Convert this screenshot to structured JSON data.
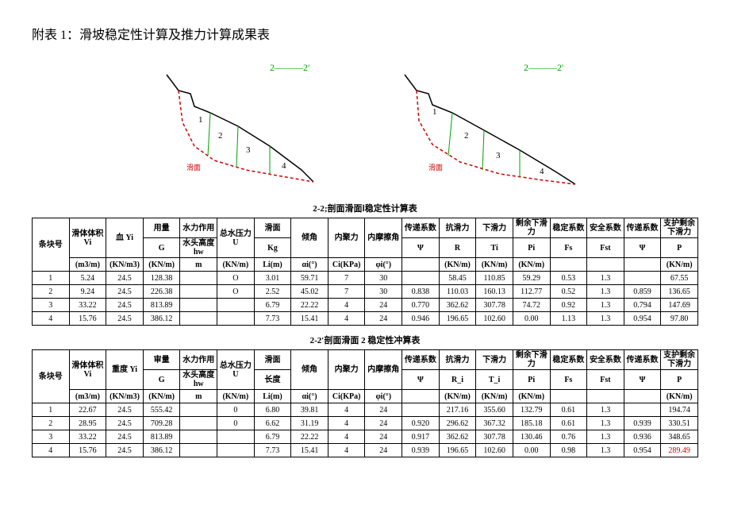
{
  "title": "附表 1：滑坡稳定性计算及推力计算成果表",
  "diagrams": {
    "label_left": "2———2′",
    "label_right": "2———2′",
    "slice_labels": [
      "1",
      "2",
      "3",
      "4"
    ],
    "slip_label": "滑面",
    "colors": {
      "label_green": "#00a000",
      "slip_red": "#d00000",
      "ground_black": "#000000",
      "slice_green": "#00a000"
    }
  },
  "table1": {
    "caption": "2-2;剖面滑面Ⅰ稳定性计算表",
    "header": {
      "c1": "条块号",
      "c2": "滑体体积 Vi",
      "c3": "血 Yi",
      "c4_top": "用量",
      "c4_bot": "G",
      "c5_top": "水力作用",
      "c5_mid": "水头高度",
      "c5_bot": "hw",
      "c6": "总水压力 U",
      "c7_top": "滑面",
      "c7_bot": "Kg",
      "c8": "倾角",
      "c9": "内聚力",
      "c10": "内摩擦角",
      "c11_top": "传递系数",
      "c11_bot": "Ψ",
      "c12_top": "抗滑力",
      "c12_bot": "R",
      "c13_top": "下滑力",
      "c13_bot": "Ti",
      "c14_top": "剩余下滑力",
      "c14_bot": "Pi",
      "c15_top": "稳定系数",
      "c15_bot": "Fs",
      "c16_top": "安全系数",
      "c16_bot": "Fst",
      "c17_top": "传递系数",
      "c17_bot": "Ψ",
      "c18_top": "支护剩余下滑力",
      "c18_bot": "P"
    },
    "units": [
      "",
      "(m3/m)",
      "(KN/m3)",
      "(KN/m)",
      "m",
      "(KN/m)",
      "Li(m)",
      "αi(°)",
      "Ci(KPa)",
      "φi(°)",
      "",
      "(KN/m)",
      "(KN/m)",
      "(KN/m)",
      "",
      "",
      "",
      "(KN/m)"
    ],
    "rows": [
      [
        "1",
        "5.24",
        "24.5",
        "128.38",
        "",
        "O",
        "3.01",
        "59.71",
        "7",
        "30",
        "",
        "58.45",
        "110.85",
        "59.29",
        "0.53",
        "1.3",
        "",
        "67.55"
      ],
      [
        "2",
        "9.24",
        "24.5",
        "226.38",
        "",
        "O",
        "2.52",
        "45.02",
        "7",
        "30",
        "0.838",
        "110.03",
        "160.13",
        "112.77",
        "0.52",
        "1.3",
        "0.859",
        "136.65"
      ],
      [
        "3",
        "33.22",
        "24.5",
        "813.89",
        "",
        "",
        "6.79",
        "22.22",
        "4",
        "24",
        "0.770",
        "362.62",
        "307.78",
        "74.72",
        "0.92",
        "1.3",
        "0.794",
        "147.69"
      ],
      [
        "4",
        "15.76",
        "24.5",
        "386.12",
        "",
        "",
        "7.73",
        "15.41",
        "4",
        "24",
        "0.946",
        "196.65",
        "102.60",
        "0.00",
        "1.13",
        "1.3",
        "0.954",
        "97.80"
      ]
    ]
  },
  "table2": {
    "caption": "2-2′剖面滑面 2 稳定性冲算表",
    "header": {
      "c1": "条块号",
      "c2": "滑体体积 Vi",
      "c3": "重度 Yi",
      "c4_top": "审量",
      "c4_bot": "G",
      "c5_top": "水力作用",
      "c5_bot": "水头高度 hw",
      "c6": "总水压力 U",
      "c7_top": "滑面",
      "c7_bot": "长度",
      "c8": "倾角",
      "c9": "内聚力",
      "c10": "内摩擦角",
      "c11_top": "传递系数",
      "c11_bot": "Ψ",
      "c12_top": "抗滑力",
      "c12_bot": "R_i",
      "c13_top": "下滑力",
      "c13_bot": "T_i",
      "c14_top": "剩余下滑力",
      "c14_bot": "Pi",
      "c15_top": "稳定系数",
      "c15_bot": "Fs",
      "c16_top": "安全系数",
      "c16_bot": "Fst",
      "c17_top": "传递系数",
      "c17_bot": "Ψ",
      "c18_top": "支护剩余下滑力",
      "c18_bot": "P"
    },
    "units": [
      "",
      "(m3/m)",
      "(KN/m3)",
      "(KN/m)",
      "m",
      "(KN/m)",
      "Li(m)",
      "αi(°)",
      "Ci(KPa)",
      "φi(°)",
      "",
      "(KN/m)",
      "(KN/m)",
      "(KN/m)",
      "",
      "",
      "",
      "(KN/m)"
    ],
    "rows": [
      [
        "1",
        "22.67",
        "24.5",
        "555.42",
        "",
        "0",
        "6.80",
        "39.81",
        "4",
        "24",
        "",
        "217.16",
        "355.60",
        "132.79",
        "0.61",
        "1.3",
        "",
        "194.74"
      ],
      [
        "2",
        "28.95",
        "24.5",
        "709.28",
        "",
        "0",
        "6.62",
        "31.19",
        "4",
        "24",
        "0.920",
        "296.62",
        "367.32",
        "185.18",
        "0.61",
        "1.3",
        "0.939",
        "330.51"
      ],
      [
        "3",
        "33.22",
        "24.5",
        "813.89",
        "",
        "",
        "6.79",
        "22.22",
        "4",
        "24",
        "0.917",
        "362.62",
        "307.78",
        "130.46",
        "0.76",
        "1.3",
        "0.936",
        "348.65"
      ],
      [
        "4",
        "15.76",
        "24.5",
        "386.12",
        "",
        "",
        "7.73",
        "15.41",
        "4",
        "24",
        "0.939",
        "196.65",
        "102.60",
        "0.00",
        "0.98",
        "1.3",
        "0.954",
        "289.49"
      ]
    ],
    "red_cell": {
      "row": 3,
      "col": 17
    }
  }
}
